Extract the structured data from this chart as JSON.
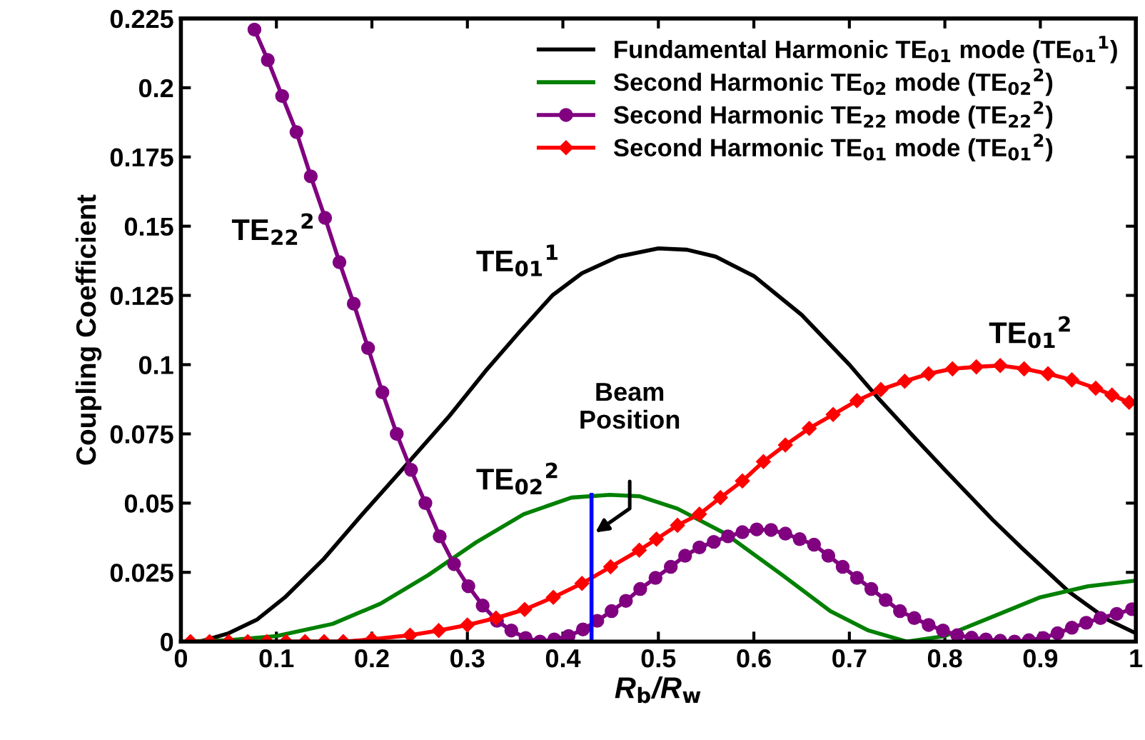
{
  "chart_data": {
    "type": "line",
    "xlabel": "R$_{b}$/R$_{w}$",
    "ylabel": "Coupling Coefficient",
    "xlim": [
      0,
      1
    ],
    "ylim": [
      0,
      0.225
    ],
    "xticks": [
      0,
      0.1,
      0.2,
      0.3,
      0.4,
      0.5,
      0.6,
      0.7,
      0.8,
      0.9,
      1
    ],
    "yticks": [
      0,
      0.025,
      0.05,
      0.075,
      0.1,
      0.125,
      0.15,
      0.175,
      0.2,
      0.225
    ],
    "grid": false,
    "legend": "top right",
    "series": [
      {
        "name": "Fundamental Harmonic TE$_{01}$ mode (TE$_{01}$$^{1}$)",
        "color": "#000000",
        "marker": "none",
        "x": [
          0.02,
          0.05,
          0.08,
          0.109,
          0.15,
          0.19,
          0.234,
          0.28,
          0.319,
          0.355,
          0.389,
          0.42,
          0.458,
          0.5,
          0.53,
          0.56,
          0.6,
          0.65,
          0.7,
          0.73,
          0.77,
          0.8,
          0.85,
          0.88,
          0.93,
          0.97,
          1.0
        ],
        "values": [
          0,
          0.003,
          0.008,
          0.016,
          0.03,
          0.046,
          0.063,
          0.081,
          0.0977,
          0.112,
          0.125,
          0.133,
          0.139,
          0.142,
          0.1415,
          0.139,
          0.132,
          0.118,
          0.1,
          0.088,
          0.073,
          0.062,
          0.044,
          0.034,
          0.018,
          0.008,
          0.003
        ]
      },
      {
        "name": "Second Harmonic TE$_{02}$ mode (TE$_{02}$$^{2}$)",
        "color": "#008000",
        "marker": "none",
        "x": [
          0,
          0.05,
          0.1,
          0.159,
          0.209,
          0.259,
          0.309,
          0.359,
          0.409,
          0.449,
          0.48,
          0.52,
          0.57,
          0.63,
          0.68,
          0.72,
          0.76,
          0.8,
          0.85,
          0.9,
          0.95,
          1.0
        ],
        "values": [
          0,
          0.0005,
          0.002,
          0.0064,
          0.0137,
          0.024,
          0.0358,
          0.046,
          0.052,
          0.053,
          0.0525,
          0.048,
          0.039,
          0.024,
          0.011,
          0.004,
          0,
          0.002,
          0.009,
          0.016,
          0.02,
          0.022
        ]
      },
      {
        "name": "Second Harmonic TE$_{22}$ mode (TE$_{22}$$^{2}$)",
        "color": "#800080",
        "marker": "circle",
        "x": [
          0.077,
          0.091,
          0.106,
          0.121,
          0.136,
          0.151,
          0.166,
          0.181,
          0.196,
          0.211,
          0.226,
          0.241,
          0.256,
          0.271,
          0.286,
          0.301,
          0.316,
          0.331,
          0.346,
          0.361,
          0.376,
          0.391,
          0.406,
          0.421,
          0.436,
          0.451,
          0.466,
          0.481,
          0.497,
          0.513,
          0.528,
          0.543,
          0.558,
          0.573,
          0.588,
          0.603,
          0.618,
          0.633,
          0.648,
          0.663,
          0.678,
          0.693,
          0.708,
          0.723,
          0.738,
          0.753,
          0.768,
          0.783,
          0.798,
          0.813,
          0.828,
          0.843,
          0.858,
          0.873,
          0.888,
          0.903,
          0.918,
          0.933,
          0.948,
          0.963,
          0.98,
          0.996
        ],
        "values": [
          0.221,
          0.21,
          0.197,
          0.184,
          0.168,
          0.153,
          0.137,
          0.122,
          0.106,
          0.09,
          0.075,
          0.062,
          0.05,
          0.038,
          0.028,
          0.02,
          0.013,
          0.0075,
          0.004,
          0.0013,
          0,
          0.0008,
          0.002,
          0.0044,
          0.0075,
          0.011,
          0.0147,
          0.019,
          0.023,
          0.027,
          0.031,
          0.034,
          0.036,
          0.038,
          0.0395,
          0.0405,
          0.0403,
          0.039,
          0.037,
          0.035,
          0.031,
          0.027,
          0.023,
          0.019,
          0.015,
          0.011,
          0.0085,
          0.006,
          0.004,
          0.0023,
          0.0014,
          0.0008,
          0.0003,
          0,
          0.0005,
          0.0013,
          0.003,
          0.005,
          0.0068,
          0.0085,
          0.01,
          0.0117
        ]
      },
      {
        "name": "Second Harmonic TE$_{01}$ mode (TE$_{01}$$^{2}$)",
        "color": "#ff0000",
        "marker": "diamond",
        "x": [
          0.01,
          0.03,
          0.05,
          0.07,
          0.09,
          0.11,
          0.13,
          0.15,
          0.17,
          0.2,
          0.24,
          0.27,
          0.3,
          0.33,
          0.36,
          0.39,
          0.42,
          0.45,
          0.48,
          0.498,
          0.52,
          0.543,
          0.565,
          0.588,
          0.61,
          0.633,
          0.658,
          0.683,
          0.708,
          0.733,
          0.758,
          0.783,
          0.808,
          0.833,
          0.858,
          0.883,
          0.908,
          0.933,
          0.958,
          0.975,
          0.993
        ],
        "values": [
          0,
          0,
          0,
          0,
          0,
          0,
          0,
          0,
          0,
          0.0008,
          0.0023,
          0.004,
          0.006,
          0.0085,
          0.0116,
          0.016,
          0.021,
          0.027,
          0.033,
          0.037,
          0.042,
          0.046,
          0.052,
          0.058,
          0.065,
          0.071,
          0.077,
          0.082,
          0.087,
          0.091,
          0.094,
          0.0967,
          0.0985,
          0.0992,
          0.0997,
          0.0985,
          0.0967,
          0.0945,
          0.0915,
          0.089,
          0.0864
        ]
      },
      {
        "color": "#0000ff",
        "marker": "none",
        "x": [
          0.43,
          0.43
        ],
        "values": [
          0,
          0.053
        ]
      }
    ],
    "annotations": [
      "TE$_{01}$$^{1}$",
      "TE$_{02}$$^{2}$",
      "TE$_{22}$$^{2}$",
      "TE$_{01}$$^{2}$",
      "Beam\nPosition"
    ]
  }
}
